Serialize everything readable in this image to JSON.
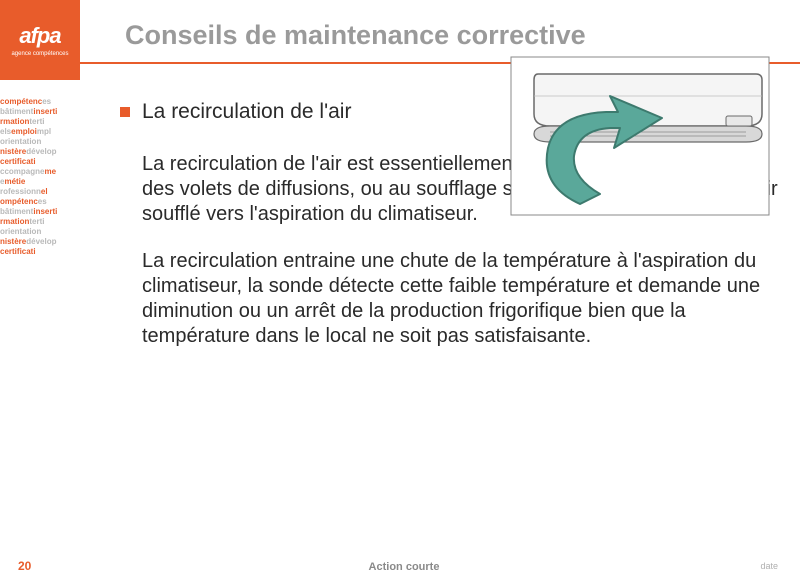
{
  "brand": {
    "logo_text": "afpa",
    "logo_sub": "agence compétences",
    "logo_bg": "#e85c2b",
    "logo_fg": "#ffffff"
  },
  "wordcloud": {
    "lines": [
      [
        [
          "compétenc",
          "o"
        ],
        [
          "es",
          "g"
        ]
      ],
      [
        [
          "bâtiment",
          "g"
        ],
        [
          "inserti",
          "o"
        ]
      ],
      [
        [
          "rmation",
          "o"
        ],
        [
          "terti",
          "g"
        ]
      ],
      [
        [
          "els",
          "g"
        ],
        [
          "emploi",
          "o"
        ],
        [
          "mpl",
          "g"
        ]
      ],
      [
        [
          "orientation",
          "g"
        ]
      ],
      [
        [
          "nistère",
          "o"
        ],
        [
          "dévelop",
          "g"
        ]
      ],
      [
        [
          "certificati",
          "o"
        ]
      ],
      [
        [
          "ccompagne",
          "g"
        ],
        [
          "me",
          "o"
        ]
      ],
      [
        [
          "e",
          "g"
        ],
        [
          "métie",
          "o"
        ]
      ],
      [
        [
          "rofessionn",
          "g"
        ],
        [
          "el",
          "o"
        ]
      ],
      [
        [
          "ompétenc",
          "o"
        ],
        [
          "es",
          "g"
        ]
      ],
      [
        [
          "bâtiment",
          "g"
        ],
        [
          "inserti",
          "o"
        ]
      ],
      [
        [
          "rmation",
          "o"
        ],
        [
          "terti",
          "g"
        ]
      ],
      [
        [
          "orientation",
          "g"
        ]
      ],
      [
        [
          "nistère",
          "o"
        ],
        [
          "dévelop",
          "g"
        ]
      ],
      [
        [
          "certificati",
          "o"
        ]
      ]
    ],
    "color_orange": "#e85c2b",
    "color_gray": "#b9b9b9"
  },
  "title": "Conseils de maintenance corrective",
  "title_color": "#9a9a9a",
  "accent_color": "#e85c2b",
  "bullet": {
    "heading": "La recirculation de l'air",
    "para1": "La recirculation de l'air est essentiellement liée à un mauvais réglage des volets de diffusions, ou au soufflage sur un obstacle qui renvoie l'air soufflé vers l'aspiration du climatiseur.",
    "para2": "La recirculation entraine une chute de la température à l'aspiration du climatiseur, la sonde détecte cette faible température et demande une diminution ou un arrêt de la production frigorifique bien que la température dans le local ne soit pas satisfaisante."
  },
  "illustration": {
    "type": "ac-unit-with-arrow",
    "unit_fill": "#f5f5f5",
    "unit_stroke": "#6a6a6a",
    "vent_fill": "#d8d8d8",
    "arrow_fill": "#5aa89a",
    "arrow_stroke": "#3d7a6e",
    "background": "#ffffff"
  },
  "footer": {
    "page": "20",
    "center": "Action courte",
    "right": "date",
    "page_color": "#e85c2b",
    "center_color": "#8a8a8a",
    "right_color": "#b0b0b0"
  }
}
